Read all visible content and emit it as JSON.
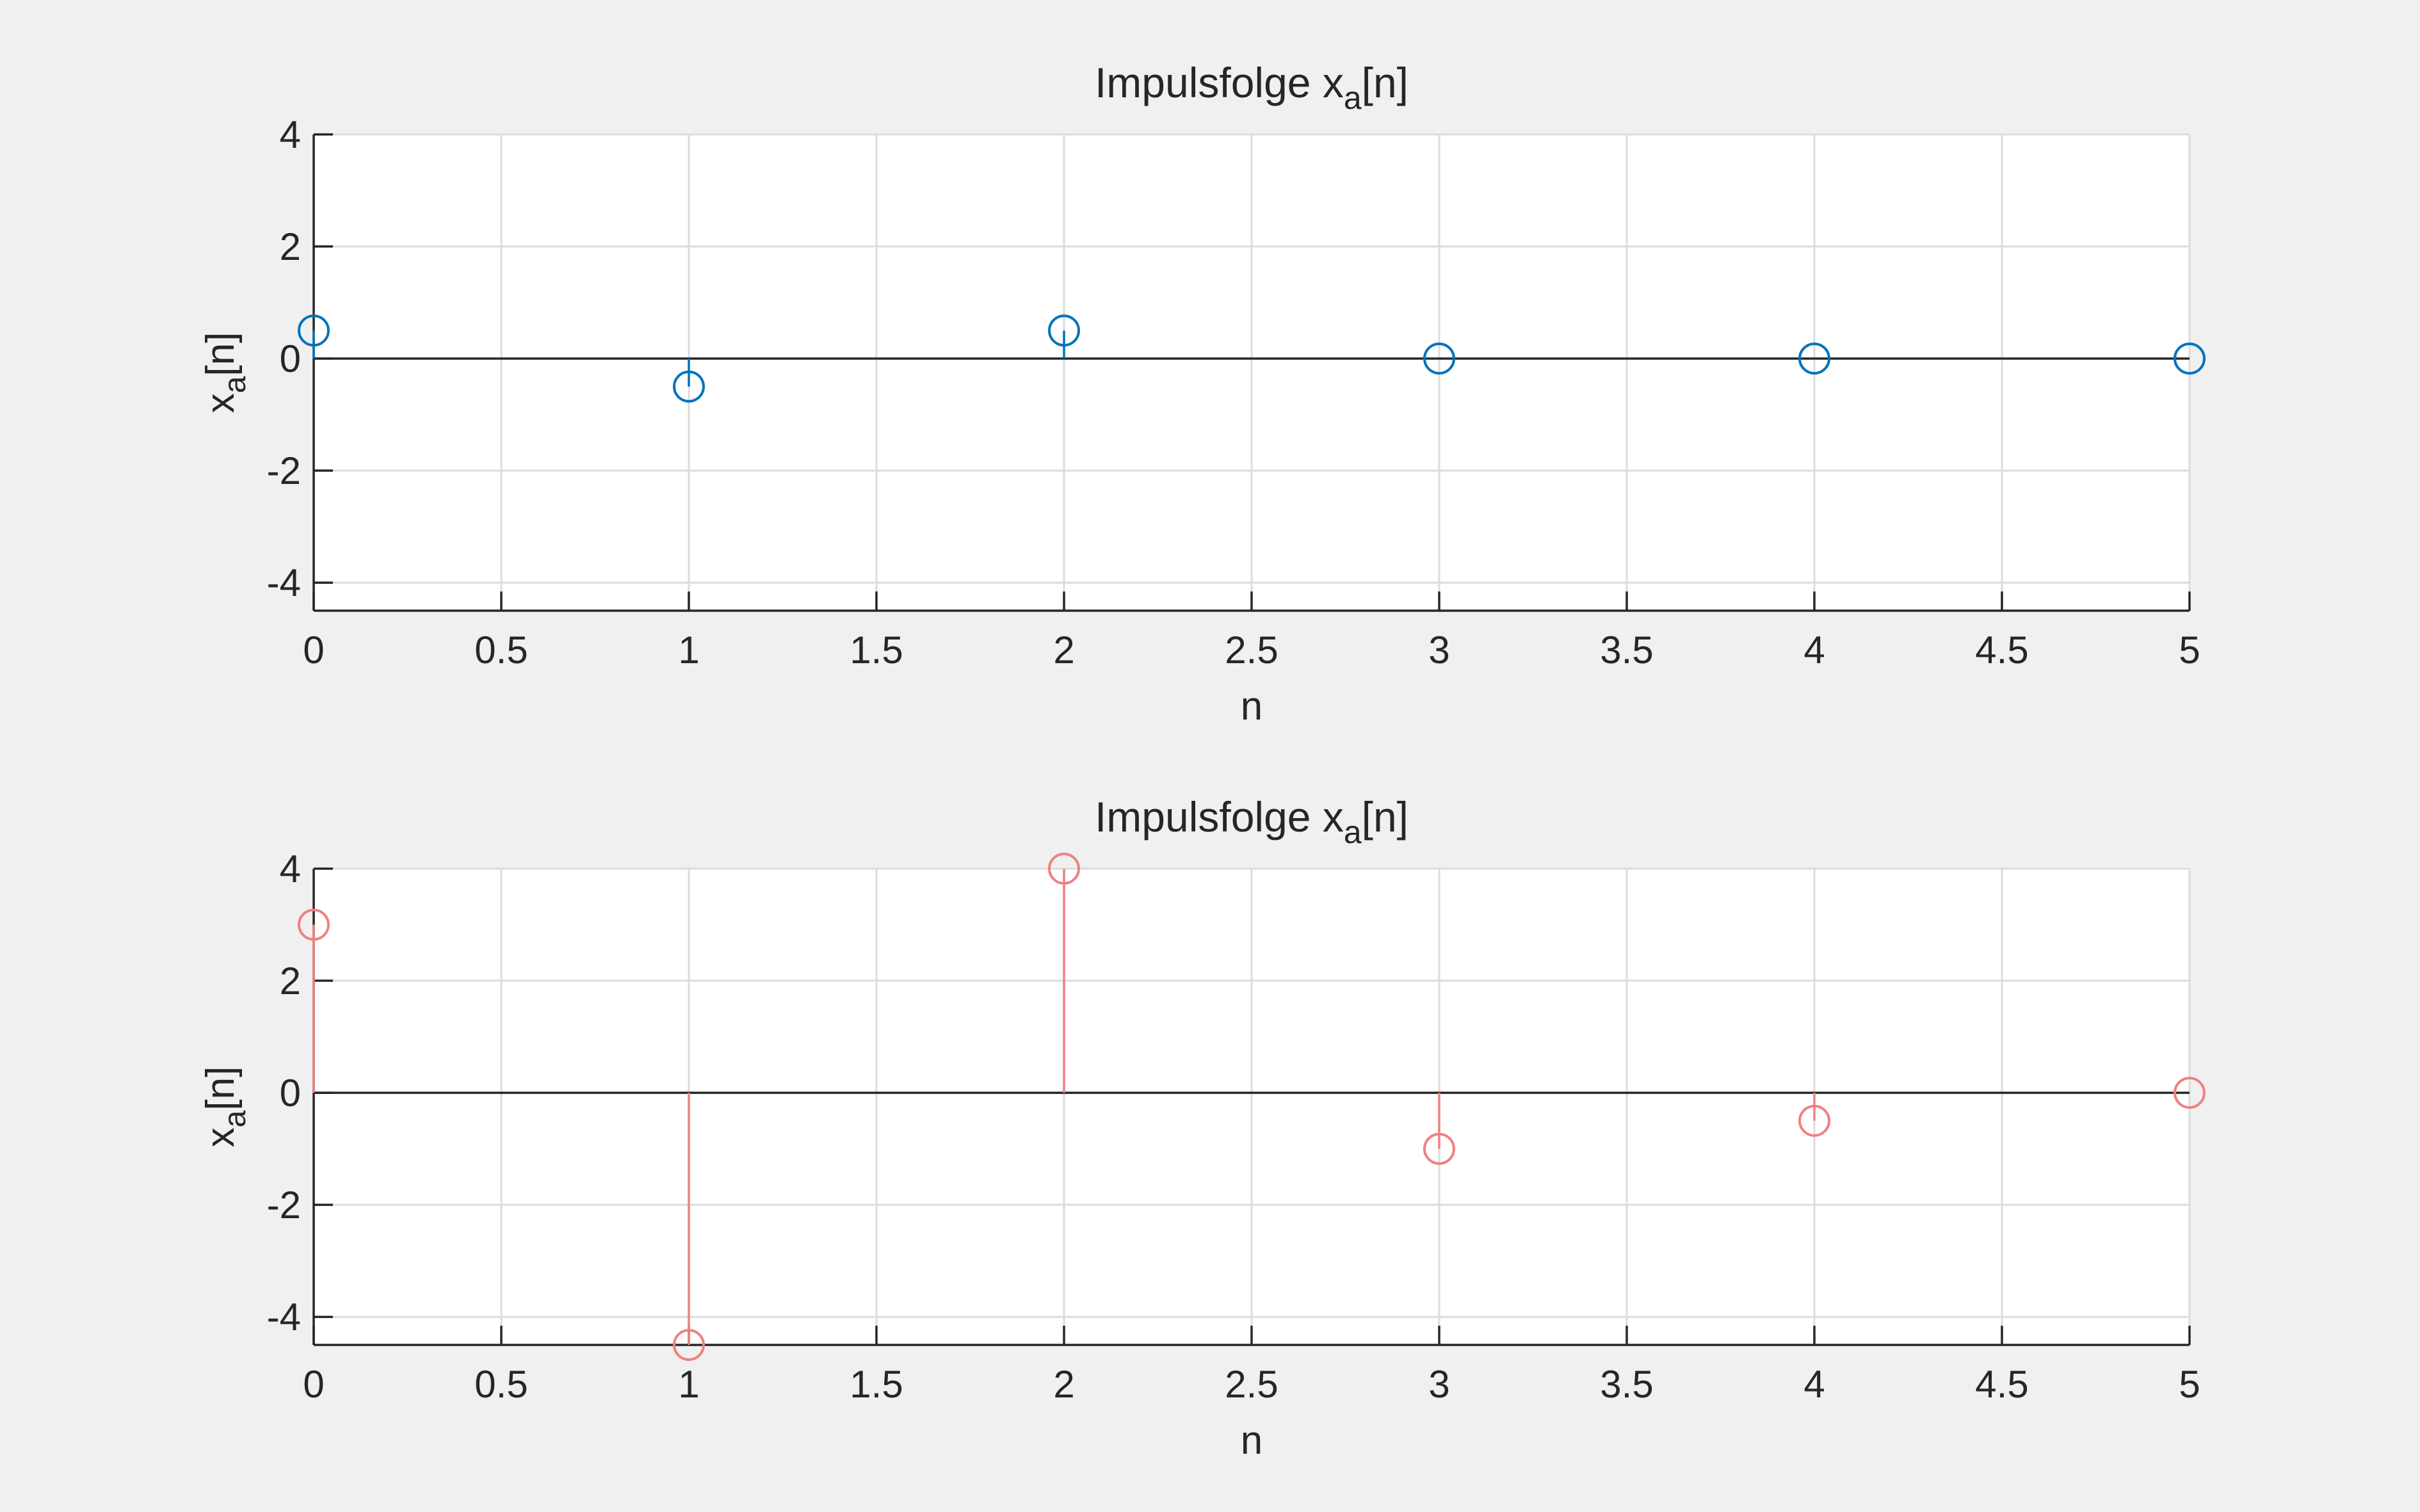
{
  "figure": {
    "background": "#f0f0f0"
  },
  "chart_data": [
    {
      "type": "stem",
      "title_main": "Impulsfolge x",
      "title_sub": "a",
      "title_tail": "[n]",
      "xlabel": "n",
      "ylabel_main": "x",
      "ylabel_sub": "a",
      "ylabel_tail": "[n]",
      "xlim": [
        0,
        5
      ],
      "ylim": [
        -4.5,
        4
      ],
      "xticks": [
        0,
        0.5,
        1,
        1.5,
        2,
        2.5,
        3,
        3.5,
        4,
        4.5,
        5
      ],
      "xtick_labels": [
        "0",
        "0.5",
        "1",
        "1.5",
        "2",
        "2.5",
        "3",
        "3.5",
        "4",
        "4.5",
        "5"
      ],
      "yticks": [
        -4,
        -2,
        0,
        2,
        4
      ],
      "ytick_labels": [
        "-4",
        "-2",
        "0",
        "2",
        "4"
      ],
      "grid": true,
      "color": "#0072bd",
      "x": [
        0,
        1,
        2,
        3,
        4,
        5
      ],
      "y": [
        0.5,
        -0.5,
        0.5,
        0,
        0,
        0
      ]
    },
    {
      "type": "stem",
      "title_main": "Impulsfolge x",
      "title_sub": "a",
      "title_tail": "[n]",
      "xlabel": "n",
      "ylabel_main": "x",
      "ylabel_sub": "a",
      "ylabel_tail": "[n]",
      "xlim": [
        0,
        5
      ],
      "ylim": [
        -4.5,
        4
      ],
      "xticks": [
        0,
        0.5,
        1,
        1.5,
        2,
        2.5,
        3,
        3.5,
        4,
        4.5,
        5
      ],
      "xtick_labels": [
        "0",
        "0.5",
        "1",
        "1.5",
        "2",
        "2.5",
        "3",
        "3.5",
        "4",
        "4.5",
        "5"
      ],
      "yticks": [
        -4,
        -2,
        0,
        2,
        4
      ],
      "ytick_labels": [
        "-4",
        "-2",
        "0",
        "2",
        "4"
      ],
      "grid": true,
      "color": "#f08080",
      "x": [
        0,
        1,
        2,
        3,
        4,
        5
      ],
      "y": [
        3,
        -4.5,
        4,
        -1,
        -0.5,
        0
      ]
    }
  ]
}
